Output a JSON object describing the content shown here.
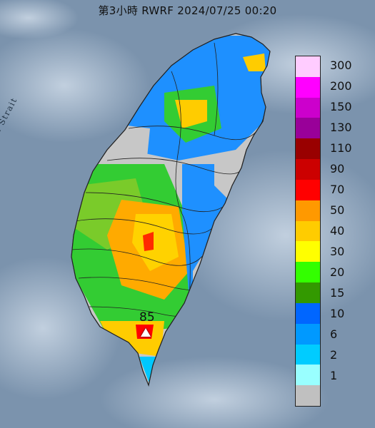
{
  "title": "第3小時  RWRF 2024/07/25 00:20",
  "strait_label": "Formosa Strait",
  "station": {
    "value": "85"
  },
  "legend": {
    "levels": [
      {
        "label": "300",
        "color": "#ffccff"
      },
      {
        "label": "200",
        "color": "#ff00ff"
      },
      {
        "label": "150",
        "color": "#cc00cc"
      },
      {
        "label": "130",
        "color": "#990099"
      },
      {
        "label": "110",
        "color": "#990000"
      },
      {
        "label": "90",
        "color": "#cc0000"
      },
      {
        "label": "70",
        "color": "#ff0000"
      },
      {
        "label": "50",
        "color": "#ff9900"
      },
      {
        "label": "40",
        "color": "#ffcc00"
      },
      {
        "label": "30",
        "color": "#ffff00"
      },
      {
        "label": "20",
        "color": "#33ff00"
      },
      {
        "label": "15",
        "color": "#339900"
      },
      {
        "label": "10",
        "color": "#0066ff"
      },
      {
        "label": "6",
        "color": "#0099ff"
      },
      {
        "label": "2",
        "color": "#00ccff"
      },
      {
        "label": "1",
        "color": "#99ffff"
      },
      {
        "label": "",
        "color": "#c0c0c0"
      }
    ]
  }
}
